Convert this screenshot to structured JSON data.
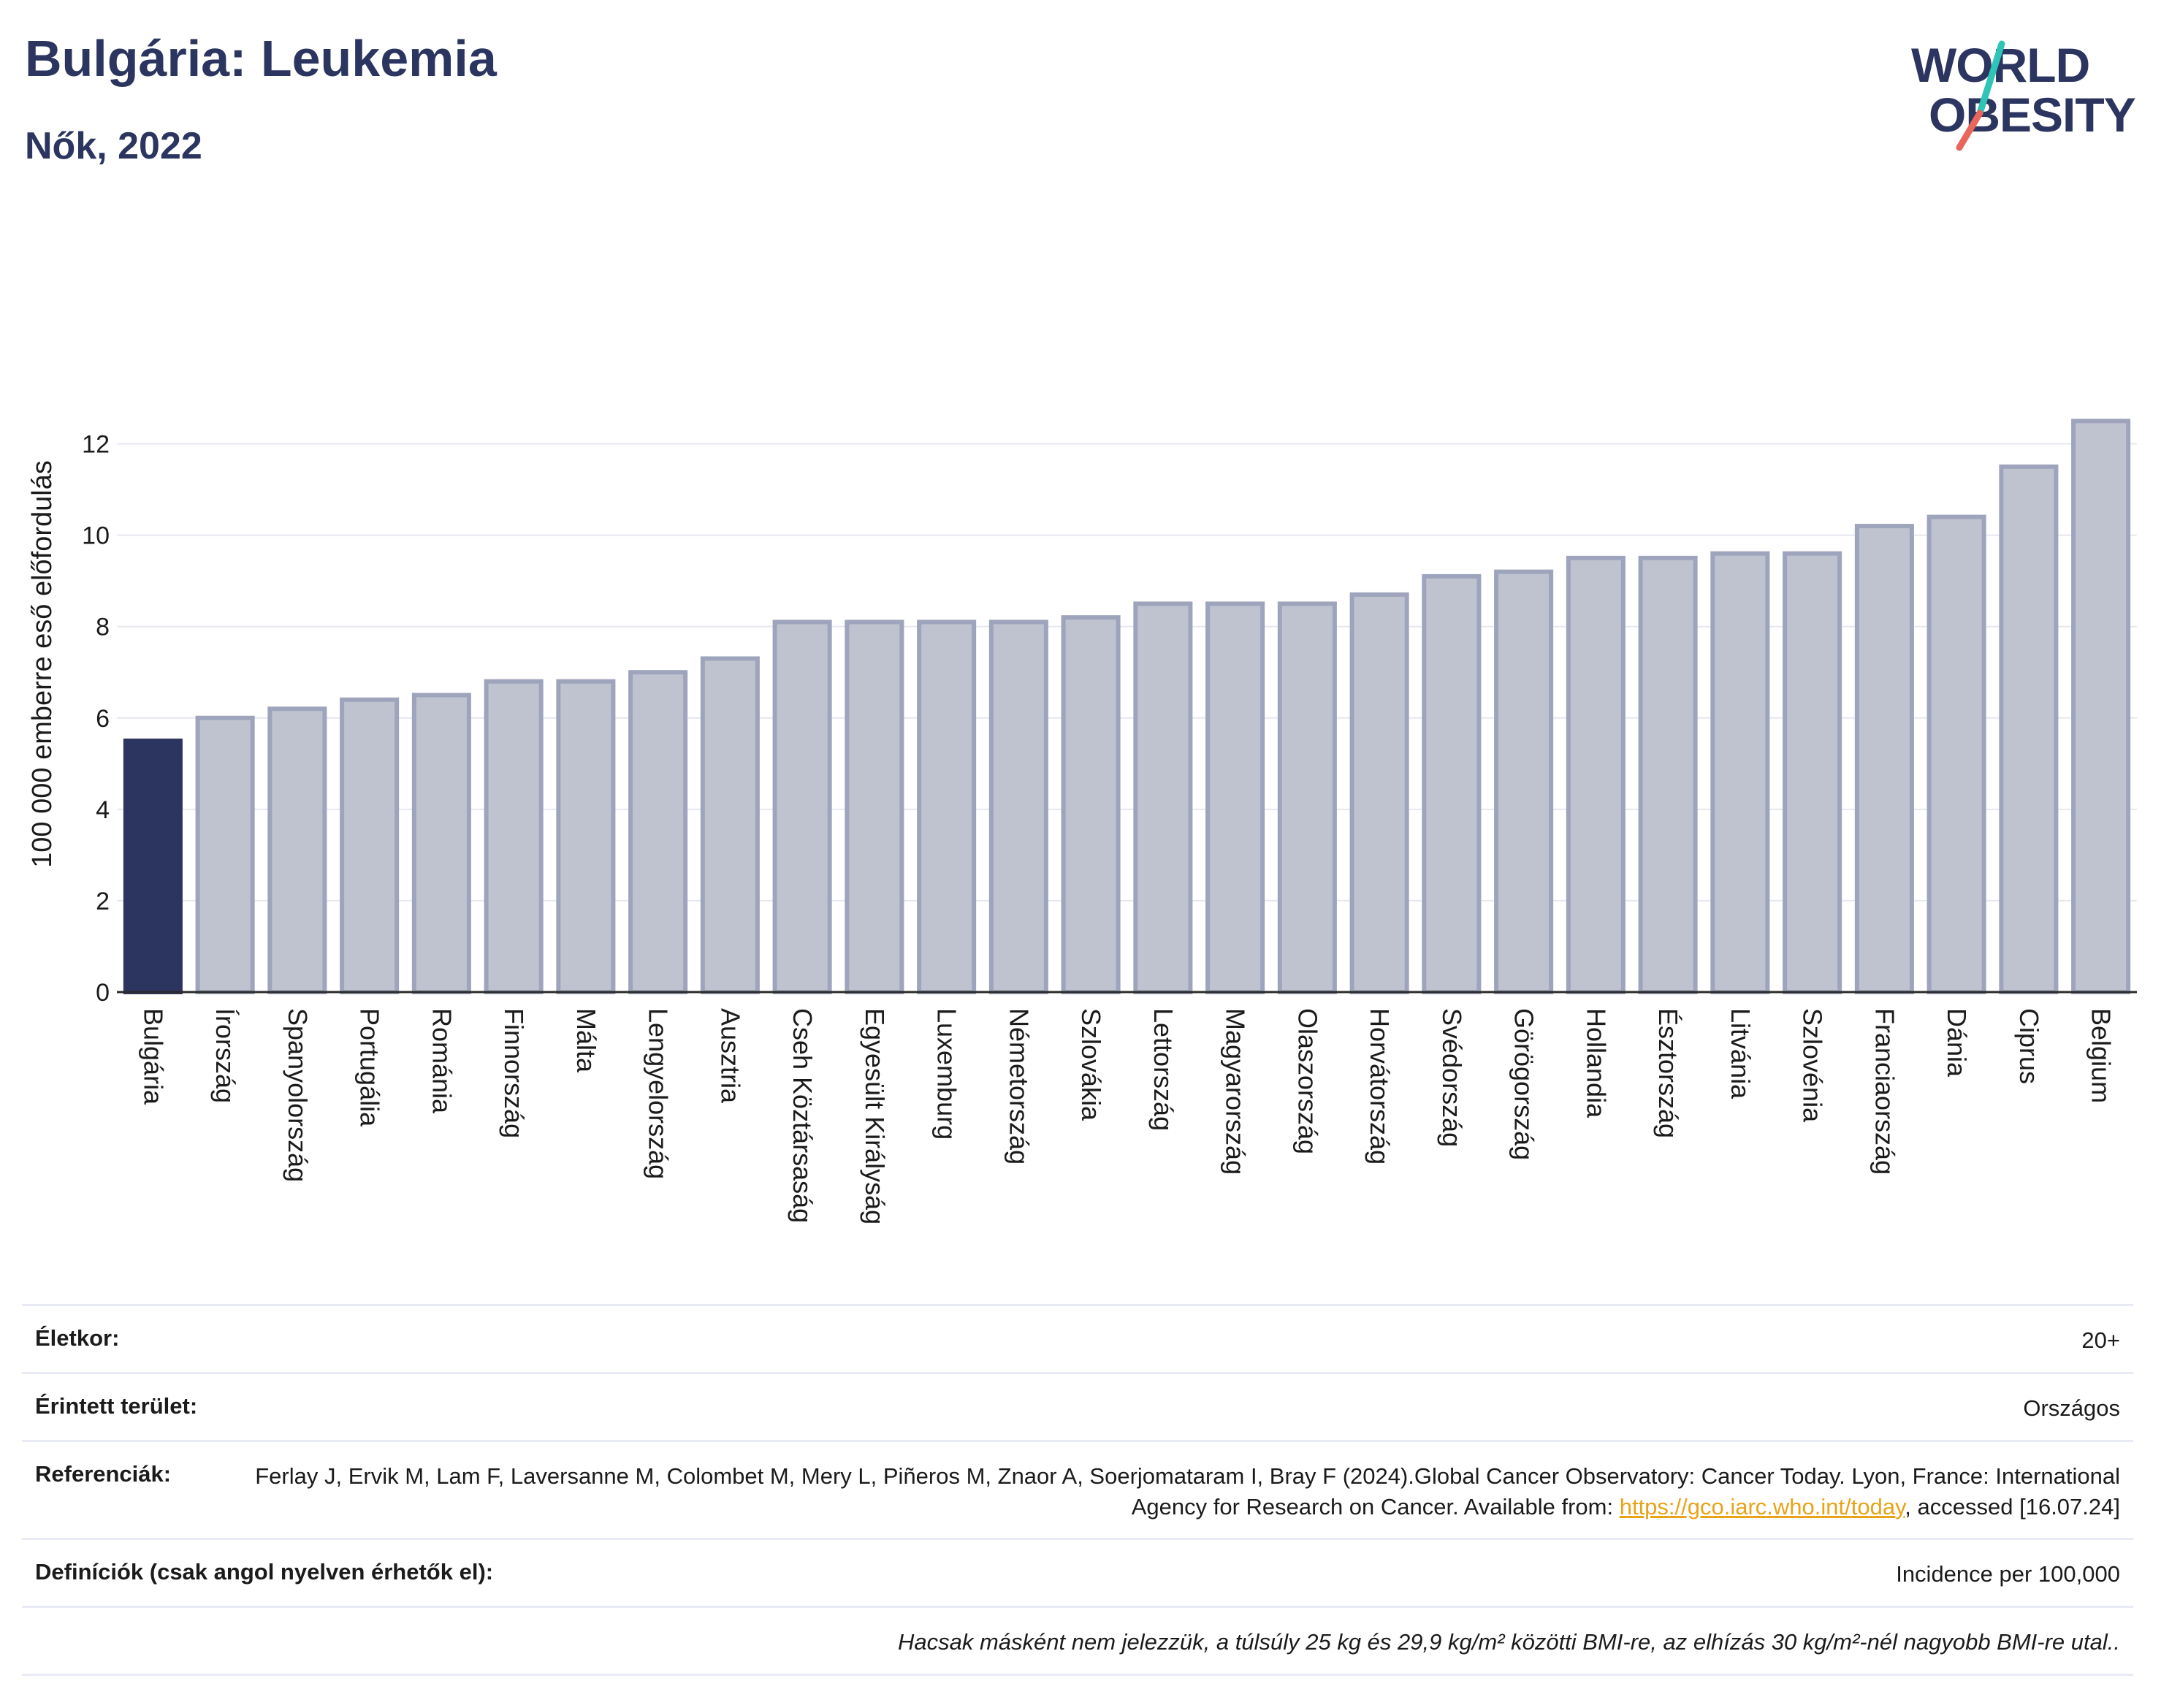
{
  "header": {
    "title": "Bulgária: Leukemia",
    "subtitle": "Nők, 2022"
  },
  "logo": {
    "line1": "WORLD",
    "line2": "OBESITY",
    "colors": {
      "text": "#2b3560",
      "slash_teal": "#2ec4b6",
      "slash_coral": "#e8665a"
    }
  },
  "colors": {
    "highlight_bar": "#2b3560",
    "bar_fill": "#bfc3d0",
    "bar_stroke": "#9ea4bb",
    "grid": "#e6e8f0",
    "link": "#e8a317"
  },
  "chart_data": {
    "type": "bar",
    "title": "",
    "xlabel": "",
    "ylabel": "100 000 emberre eső előfordulás",
    "ylim": [
      0,
      12.6
    ],
    "yticks": [
      0,
      2,
      4,
      6,
      8,
      10,
      12
    ],
    "grid": true,
    "highlight": "Bulgária",
    "categories": [
      "Bulgária",
      "Írország",
      "Spanyolország",
      "Portugália",
      "Románia",
      "Finnország",
      "Málta",
      "Lengyelország",
      "Ausztria",
      "Cseh Köztársaság",
      "Egyesült Királyság",
      "Luxemburg",
      "Németország",
      "Szlovákia",
      "Lettország",
      "Magyarország",
      "Olaszország",
      "Horvátország",
      "Svédország",
      "Görögország",
      "Hollandia",
      "Észtország",
      "Litvánia",
      "Szlovénia",
      "Franciaország",
      "Dánia",
      "Ciprus",
      "Belgium"
    ],
    "values": [
      5.5,
      6.0,
      6.2,
      6.4,
      6.5,
      6.8,
      6.8,
      7.0,
      7.3,
      8.1,
      8.1,
      8.1,
      8.1,
      8.2,
      8.5,
      8.5,
      8.5,
      8.7,
      9.1,
      9.2,
      9.5,
      9.5,
      9.6,
      9.6,
      10.2,
      10.4,
      11.5,
      12.5
    ]
  },
  "meta": {
    "age": {
      "label": "Életkor:",
      "value": "20+"
    },
    "area": {
      "label": "Érintett terület:",
      "value": "Országos"
    },
    "references": {
      "label": "Referenciák:",
      "text_before": "Ferlay J, Ervik M, Lam F, Laversanne M, Colombet M, Mery L, Piñeros M, Znaor A, Soerjomataram I, Bray F (2024).Global Cancer Observatory: Cancer Today. Lyon, France: International Agency for Research on Cancer. Available from: ",
      "link": "https://gco.iarc.who.int/today",
      "text_after": ", accessed [16.07.24]"
    },
    "definitions": {
      "label": "Definíciók (csak angol nyelven érhetők el):",
      "value": "Incidence per 100,000"
    },
    "note": "Hacsak másként nem jelezzük, a túlsúly 25 kg és 29,9 kg/m² közötti BMI-re, az elhízás 30 kg/m²-nél nagyobb BMI-re utal.."
  }
}
